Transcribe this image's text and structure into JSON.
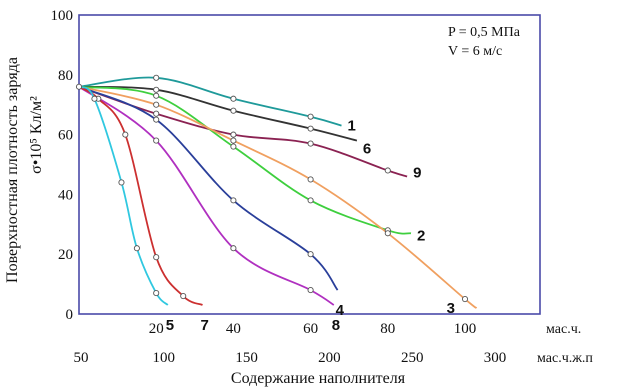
{
  "chart_data": {
    "type": "line",
    "annotations": [
      "P = 0,5 МПа",
      "V = 6 м/с"
    ],
    "ylabel_main": "Поверхностная плотность заряда",
    "ylabel_unit": "σ•10⁵ Кл/м²",
    "xlabel": "Содержание наполнителя",
    "x_primary": {
      "unit": "мас.ч.",
      "ticks": [
        "20",
        "40",
        "60",
        "80",
        "100"
      ]
    },
    "x_secondary": {
      "unit": "мас.ч.ж.п",
      "ticks": [
        "50",
        "100",
        "150",
        "200",
        "250",
        "300"
      ]
    },
    "y_ticks": [
      "0",
      "20",
      "40",
      "60",
      "80",
      "100"
    ],
    "xlim": [
      0,
      112
    ],
    "ylim": [
      0,
      100
    ],
    "grid": false,
    "series": [
      {
        "name": "1",
        "color": "#1f9a9a",
        "points": [
          [
            0,
            76
          ],
          [
            20,
            79
          ],
          [
            40,
            72
          ],
          [
            60,
            66
          ],
          [
            68,
            63
          ]
        ]
      },
      {
        "name": "6",
        "color": "#333333",
        "points": [
          [
            0,
            76
          ],
          [
            20,
            75
          ],
          [
            40,
            68
          ],
          [
            60,
            62
          ],
          [
            72,
            58
          ]
        ]
      },
      {
        "name": "9",
        "color": "#8b2252",
        "points": [
          [
            0,
            76
          ],
          [
            20,
            67
          ],
          [
            40,
            60
          ],
          [
            60,
            57
          ],
          [
            80,
            48
          ],
          [
            85,
            46
          ]
        ]
      },
      {
        "name": "2",
        "color": "#3ecf3e",
        "points": [
          [
            0,
            76
          ],
          [
            20,
            73
          ],
          [
            40,
            56
          ],
          [
            60,
            38
          ],
          [
            80,
            28
          ],
          [
            86,
            27
          ]
        ]
      },
      {
        "name": "3",
        "color": "#f0a060",
        "points": [
          [
            0,
            76
          ],
          [
            20,
            70
          ],
          [
            40,
            58
          ],
          [
            60,
            45
          ],
          [
            80,
            27
          ],
          [
            100,
            5
          ],
          [
            103,
            2
          ]
        ]
      },
      {
        "name": "4",
        "color": "#2a3f9a",
        "points": [
          [
            0,
            76
          ],
          [
            20,
            65
          ],
          [
            40,
            38
          ],
          [
            60,
            20
          ],
          [
            67,
            8
          ]
        ]
      },
      {
        "name": "8",
        "color": "#b030c0",
        "points": [
          [
            0,
            76
          ],
          [
            20,
            58
          ],
          [
            40,
            22
          ],
          [
            60,
            8
          ],
          [
            66,
            3
          ]
        ]
      },
      {
        "name": "7",
        "color": "#cc3030",
        "points": [
          [
            0,
            76
          ],
          [
            5,
            72
          ],
          [
            12,
            60
          ],
          [
            20,
            19
          ],
          [
            27,
            6
          ],
          [
            32,
            3
          ]
        ]
      },
      {
        "name": "5",
        "color": "#30c8e0",
        "points": [
          [
            0,
            76
          ],
          [
            4,
            72
          ],
          [
            11,
            44
          ],
          [
            15,
            22
          ],
          [
            20,
            7
          ],
          [
            23,
            3
          ]
        ]
      }
    ]
  }
}
